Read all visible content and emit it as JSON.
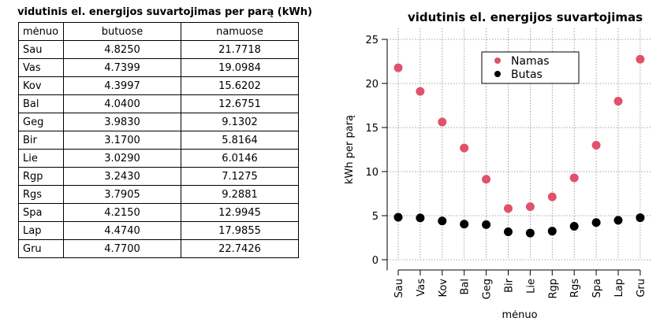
{
  "table": {
    "title": "vidutinis el. energijos suvartojimas per parą (kWh)",
    "columns": [
      "mėnuo",
      "butuose",
      "namuose"
    ],
    "rows": [
      [
        "Sau",
        "4.8250",
        "21.7718"
      ],
      [
        "Vas",
        "4.7399",
        "19.0984"
      ],
      [
        "Kov",
        "4.3997",
        "15.6202"
      ],
      [
        "Bal",
        "4.0400",
        "12.6751"
      ],
      [
        "Geg",
        "3.9830",
        "9.1302"
      ],
      [
        "Bir",
        "3.1700",
        "5.8164"
      ],
      [
        "Lie",
        "3.0290",
        "6.0146"
      ],
      [
        "Rgp",
        "3.2430",
        "7.1275"
      ],
      [
        "Rgs",
        "3.7905",
        "9.2881"
      ],
      [
        "Spa",
        "4.2150",
        "12.9945"
      ],
      [
        "Lap",
        "4.4740",
        "17.9855"
      ],
      [
        "Gru",
        "4.7700",
        "22.7426"
      ]
    ]
  },
  "chart_data": {
    "type": "scatter",
    "title": "vidutinis el. energijos suvartojimas",
    "xlabel": "mėnuo",
    "ylabel": "kWh per parą",
    "categories": [
      "Sau",
      "Vas",
      "Kov",
      "Bal",
      "Geg",
      "Bir",
      "Lie",
      "Rgp",
      "Rgs",
      "Spa",
      "Lap",
      "Gru"
    ],
    "series": [
      {
        "name": "Namas",
        "color": "#e0526b",
        "values": [
          21.7718,
          19.0984,
          15.6202,
          12.6751,
          9.1302,
          5.8164,
          6.0146,
          7.1275,
          9.2881,
          12.9945,
          17.9855,
          22.7426
        ]
      },
      {
        "name": "Butas",
        "color": "#000000",
        "values": [
          4.825,
          4.7399,
          4.3997,
          4.04,
          3.983,
          3.17,
          3.029,
          3.243,
          3.7905,
          4.215,
          4.474,
          4.77
        ]
      }
    ],
    "yticks": [
      0,
      5,
      10,
      15,
      20,
      25
    ],
    "ylim": [
      -1.2,
      25
    ],
    "grid": true,
    "grid_color": "#888888",
    "legend_placement": "upper-center"
  }
}
